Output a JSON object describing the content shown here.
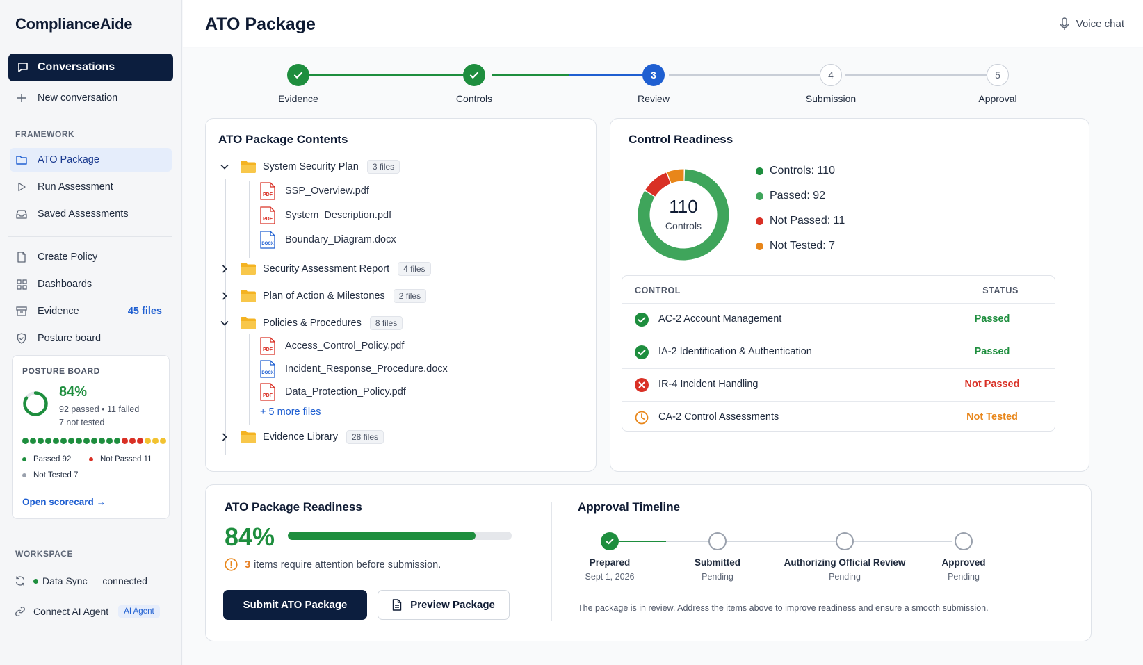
{
  "app": {
    "name": "ComplianceAide"
  },
  "header": {
    "title": "ATO Package",
    "voice_label": "Voice chat"
  },
  "sidebar": {
    "conversations_label": "Conversations",
    "new_conversation_label": "New conversation",
    "framework_heading": "FRAMEWORK",
    "items": [
      {
        "label": "ATO Package",
        "icon": "folder-icon"
      },
      {
        "label": "Run Assessment",
        "icon": "play-icon"
      },
      {
        "label": "Saved Assessments",
        "icon": "inbox-icon"
      },
      {
        "label": "Create Policy",
        "icon": "document-icon"
      },
      {
        "label": "Dashboards",
        "icon": "grid-icon"
      },
      {
        "label": "Evidence",
        "icon": "archive-icon",
        "count": "45 files"
      },
      {
        "label": "Posture board",
        "icon": "shield-icon"
      }
    ],
    "posture": {
      "title": "POSTURE BOARD",
      "percent": "84%",
      "line1": "92 passed • 11 failed",
      "line2": "7 not tested",
      "passed_label": "Passed 92",
      "not_passed_label": "Not Passed 11",
      "not_tested_label": "Not Tested 7",
      "link": "Open scorecard →",
      "ring_fraction": 0.84,
      "dots": [
        "green",
        "green",
        "green",
        "green",
        "green",
        "green",
        "green",
        "green",
        "green",
        "green",
        "green",
        "green",
        "green",
        "red",
        "red",
        "red",
        "yellow",
        "yellow",
        "yellow"
      ]
    },
    "workspace_heading": "WORKSPACE",
    "data_sync": "Data Sync — connected",
    "connect_agent": "Connect AI Agent",
    "agent_badge": "AI Agent"
  },
  "stepper": {
    "steps": [
      {
        "label": "Evidence",
        "status": "done",
        "num": ""
      },
      {
        "label": "Controls",
        "status": "done",
        "num": ""
      },
      {
        "label": "Review",
        "status": "current",
        "num": "3"
      },
      {
        "label": "Submission",
        "status": "todo",
        "num": "4"
      },
      {
        "label": "Approval",
        "status": "todo",
        "num": "5"
      }
    ]
  },
  "contents": {
    "title": "ATO Package Contents",
    "folders": [
      {
        "name": "System Security Plan",
        "badge": "3 files",
        "expanded": true,
        "files": [
          {
            "name": "SSP_Overview.pdf",
            "type": "PDF"
          },
          {
            "name": "System_Description.pdf",
            "type": "PDF"
          },
          {
            "name": "Boundary_Diagram.docx",
            "type": "DOCX"
          }
        ]
      },
      {
        "name": "Security Assessment Report",
        "badge": "4 files",
        "expanded": false
      },
      {
        "name": "Plan of Action & Milestones",
        "badge": "2 files",
        "expanded": false
      },
      {
        "name": "Policies & Procedures",
        "badge": "8 files",
        "expanded": true,
        "files": [
          {
            "name": "Access_Control_Policy.pdf",
            "type": "PDF"
          },
          {
            "name": "Incident_Response_Procedure.docx",
            "type": "DOCX"
          },
          {
            "name": "Data_Protection_Policy.pdf",
            "type": "PDF"
          }
        ],
        "more": "+ 5 more files"
      },
      {
        "name": "Evidence Library",
        "badge": "28 files",
        "expanded": false
      }
    ]
  },
  "readiness": {
    "title": "Control Readiness",
    "donut_center": "110",
    "donut_sub": "Controls",
    "legend": [
      {
        "label": "Controls: 110",
        "color": "#1e8e3e"
      },
      {
        "label": "Passed: 92",
        "color": "#3fa55b"
      },
      {
        "label": "Not Passed: 11",
        "color": "#d93025"
      },
      {
        "label": "Not Tested: 7",
        "color": "#e8861a"
      }
    ],
    "chart_data": {
      "type": "pie",
      "categories": [
        "Passed",
        "Not Passed",
        "Not Tested"
      ],
      "values": [
        92,
        11,
        7
      ]
    },
    "table_headers": {
      "control": "CONTROL",
      "status": "STATUS"
    },
    "rows": [
      {
        "name": "AC-2 Account Management",
        "status": "Passed",
        "kind": "pass"
      },
      {
        "name": "IA-2 Identification & Authentication",
        "status": "Passed",
        "kind": "pass"
      },
      {
        "name": "IR-4 Incident Handling",
        "status": "Not Passed",
        "kind": "fail"
      },
      {
        "name": "CA-2 Control Assessments",
        "status": "Not Tested",
        "kind": "untested"
      }
    ]
  },
  "package": {
    "title": "ATO Package Readiness",
    "percent": "84%",
    "progress": 0.84,
    "attention_count": "3",
    "attention_text": "items require attention before submission.",
    "submit_label": "Submit ATO Package",
    "preview_label": "Preview Package"
  },
  "timeline": {
    "title": "Approval Timeline",
    "steps": [
      {
        "label": "Prepared",
        "sub": "Sept 1, 2026",
        "status": "done"
      },
      {
        "label": "Submitted",
        "sub": "Pending",
        "status": "todo"
      },
      {
        "label": "Authorizing Official Review",
        "sub": "Pending",
        "status": "todo"
      },
      {
        "label": "Approved",
        "sub": "Pending",
        "status": "todo"
      }
    ],
    "note": "The package is in review. Address the items above to improve readiness and ensure a smooth submission."
  },
  "colors": {
    "navy": "#0c1e3e",
    "green": "#1e8e3e",
    "blue": "#1f5fd1",
    "red": "#d93025",
    "orange": "#e8861a"
  }
}
